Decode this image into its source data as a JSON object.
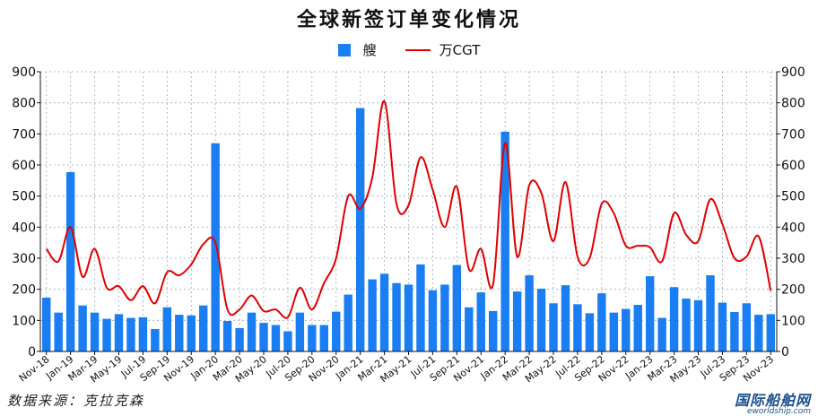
{
  "title": "全球新签订单变化情况",
  "legend": {
    "bar_label": "艘",
    "line_label": "万CGT"
  },
  "source": "数据来源：克拉克森",
  "watermark": {
    "cn": "国际船舶网",
    "en": "eworldship.com"
  },
  "colors": {
    "bar": "#1a7ef2",
    "line": "#e00000"
  },
  "chart_data": {
    "type": "bar",
    "x_tick_labels": [
      "Nov-18",
      "Jan-19",
      "Mar-19",
      "May-19",
      "Jul-19",
      "Sep-19",
      "Nov-19",
      "Jan-20",
      "Mar-20",
      "May-20",
      "Jul-20",
      "Sep-20",
      "Nov-20",
      "Jan-21",
      "Mar-21",
      "May-21",
      "Jul-21",
      "Sep-21",
      "Nov-21",
      "Jan-22",
      "Mar-22",
      "May-22",
      "Jul-22",
      "Sep-22",
      "Nov-22",
      "Jan-23",
      "Mar-23",
      "May-23",
      "Jul-23",
      "Sep-23",
      "Nov-23"
    ],
    "ylim": [
      0,
      900
    ],
    "y_ticks": [
      0,
      100,
      200,
      300,
      400,
      500,
      600,
      700,
      800,
      900
    ],
    "grid": true,
    "series": [
      {
        "name": "艘",
        "type": "bar",
        "axis": "left",
        "values": [
          173,
          125,
          577,
          148,
          125,
          105,
          120,
          108,
          110,
          72,
          142,
          118,
          116,
          148,
          670,
          98,
          75,
          125,
          92,
          85,
          65,
          125,
          85,
          85,
          128,
          183,
          783,
          232,
          250,
          220,
          215,
          280,
          197,
          215,
          278,
          142,
          190,
          130,
          707,
          193,
          245,
          202,
          155,
          213,
          152,
          123,
          187,
          125,
          137,
          150,
          242,
          108,
          207,
          170,
          165,
          245,
          157,
          127,
          155,
          118,
          120
        ]
      },
      {
        "name": "万CGT",
        "type": "line",
        "axis": "right",
        "values": [
          330,
          290,
          400,
          240,
          330,
          205,
          210,
          165,
          210,
          155,
          255,
          245,
          280,
          345,
          350,
          135,
          135,
          180,
          130,
          135,
          110,
          205,
          135,
          220,
          300,
          500,
          460,
          560,
          805,
          475,
          470,
          625,
          520,
          400,
          530,
          265,
          330,
          215,
          670,
          305,
          535,
          510,
          355,
          545,
          305,
          300,
          475,
          445,
          340,
          340,
          335,
          290,
          445,
          375,
          355,
          490,
          410,
          300,
          305,
          370,
          195
        ]
      }
    ]
  }
}
